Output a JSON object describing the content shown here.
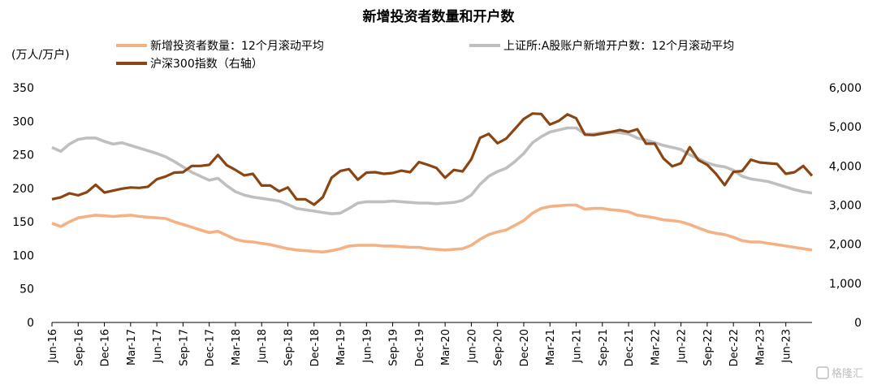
{
  "chart_data": {
    "type": "line",
    "title": "新增投资者数量和开户数",
    "y_left_unit": "(万人/万户)",
    "y_left_lim": [
      0,
      350
    ],
    "y_left_ticks": [
      "0",
      "50",
      "100",
      "150",
      "200",
      "250",
      "300",
      "350"
    ],
    "y_right_lim": [
      0,
      6000
    ],
    "y_right_ticks": [
      "0",
      "1,000",
      "2,000",
      "3,000",
      "4,000",
      "5,000",
      "6,000"
    ],
    "x": [
      "2016-06",
      "2016-07",
      "2016-08",
      "2016-09",
      "2016-10",
      "2016-11",
      "2016-12",
      "2017-01",
      "2017-02",
      "2017-03",
      "2017-04",
      "2017-05",
      "2017-06",
      "2017-07",
      "2017-08",
      "2017-09",
      "2017-10",
      "2017-11",
      "2017-12",
      "2018-01",
      "2018-02",
      "2018-03",
      "2018-04",
      "2018-05",
      "2018-06",
      "2018-07",
      "2018-08",
      "2018-09",
      "2018-10",
      "2018-11",
      "2018-12",
      "2019-01",
      "2019-02",
      "2019-03",
      "2019-04",
      "2019-05",
      "2019-06",
      "2019-07",
      "2019-08",
      "2019-09",
      "2019-10",
      "2019-11",
      "2019-12",
      "2020-01",
      "2020-02",
      "2020-03",
      "2020-04",
      "2020-05",
      "2020-06",
      "2020-07",
      "2020-08",
      "2020-09",
      "2020-10",
      "2020-11",
      "2020-12",
      "2021-01",
      "2021-02",
      "2021-03",
      "2021-04",
      "2021-05",
      "2021-06",
      "2021-07",
      "2021-08",
      "2021-09",
      "2021-10",
      "2021-11",
      "2021-12",
      "2022-01",
      "2022-02",
      "2022-03",
      "2022-04",
      "2022-05",
      "2022-06",
      "2022-07",
      "2022-08",
      "2022-09",
      "2022-10",
      "2022-11",
      "2022-12",
      "2023-01",
      "2023-02",
      "2023-03",
      "2023-04",
      "2023-05",
      "2023-06",
      "2023-07",
      "2023-08",
      "2023-09"
    ],
    "xtick_labels": [
      "Jun-16",
      "Sep-16",
      "Dec-16",
      "Mar-17",
      "Jun-17",
      "Sep-17",
      "Dec-17",
      "Mar-18",
      "Jun-18",
      "Sep-18",
      "Dec-18",
      "Mar-19",
      "Jun-19",
      "Sep-19",
      "Dec-19",
      "Mar-20",
      "Jun-20",
      "Sep-20",
      "Dec-20",
      "Mar-21",
      "Jun-21",
      "Sep-21",
      "Dec-21",
      "Mar-22",
      "Jun-22",
      "Sep-22",
      "Dec-22",
      "Mar-23",
      "Jun-23"
    ],
    "series": [
      {
        "name": "新增投资者数量：12个月滚动平均",
        "axis": "left",
        "color": "#F4B183",
        "values": [
          148,
          143,
          150,
          156,
          158,
          160,
          159,
          158,
          159,
          160,
          158,
          157,
          156,
          155,
          150,
          146,
          142,
          138,
          134,
          136,
          130,
          124,
          121,
          120,
          118,
          116,
          113,
          110,
          108,
          107,
          106,
          105,
          107,
          110,
          114,
          115,
          115,
          115,
          114,
          114,
          113,
          112,
          112,
          110,
          109,
          108,
          109,
          110,
          115,
          124,
          131,
          135,
          138,
          145,
          152,
          163,
          170,
          173,
          174,
          175,
          175,
          169,
          170,
          170,
          168,
          167,
          165,
          160,
          158,
          156,
          153,
          152,
          150,
          146,
          141,
          136,
          133,
          131,
          127,
          122,
          120,
          120,
          118,
          116,
          114,
          112,
          110,
          108
        ]
      },
      {
        "name": "上证所:A股账户新增开户数：12个月滚动平均",
        "axis": "left",
        "color": "#BFBFBF",
        "values": [
          261,
          255,
          266,
          273,
          275,
          275,
          270,
          266,
          268,
          264,
          260,
          256,
          252,
          247,
          240,
          232,
          224,
          218,
          212,
          215,
          204,
          195,
          190,
          187,
          185,
          183,
          181,
          176,
          170,
          168,
          166,
          164,
          162,
          163,
          170,
          178,
          180,
          180,
          180,
          181,
          180,
          179,
          178,
          178,
          177,
          178,
          179,
          182,
          190,
          206,
          218,
          225,
          230,
          240,
          252,
          268,
          277,
          284,
          287,
          290,
          290,
          281,
          281,
          283,
          284,
          283,
          281,
          275,
          272,
          268,
          264,
          261,
          258,
          250,
          244,
          238,
          234,
          232,
          227,
          218,
          214,
          212,
          210,
          206,
          202,
          198,
          195,
          193
        ]
      },
      {
        "name": "沪深300指数（右轴）",
        "axis": "right",
        "color": "#8B4513",
        "values": [
          3150,
          3200,
          3300,
          3250,
          3330,
          3520,
          3320,
          3370,
          3420,
          3450,
          3440,
          3470,
          3660,
          3730,
          3830,
          3840,
          4000,
          4000,
          4030,
          4280,
          4020,
          3900,
          3760,
          3800,
          3500,
          3500,
          3350,
          3450,
          3150,
          3150,
          3010,
          3200,
          3700,
          3870,
          3920,
          3650,
          3830,
          3840,
          3800,
          3820,
          3880,
          3840,
          4100,
          4030,
          3950,
          3700,
          3900,
          3860,
          4170,
          4720,
          4820,
          4580,
          4700,
          4950,
          5200,
          5340,
          5330,
          5060,
          5150,
          5320,
          5220,
          4800,
          4790,
          4830,
          4870,
          4920,
          4870,
          4940,
          4570,
          4570,
          4190,
          3990,
          4070,
          4480,
          4150,
          4030,
          3800,
          3510,
          3850,
          3870,
          4160,
          4090,
          4070,
          4050,
          3800,
          3840,
          4000,
          3750
        ]
      }
    ]
  },
  "watermark_text": "格隆汇"
}
